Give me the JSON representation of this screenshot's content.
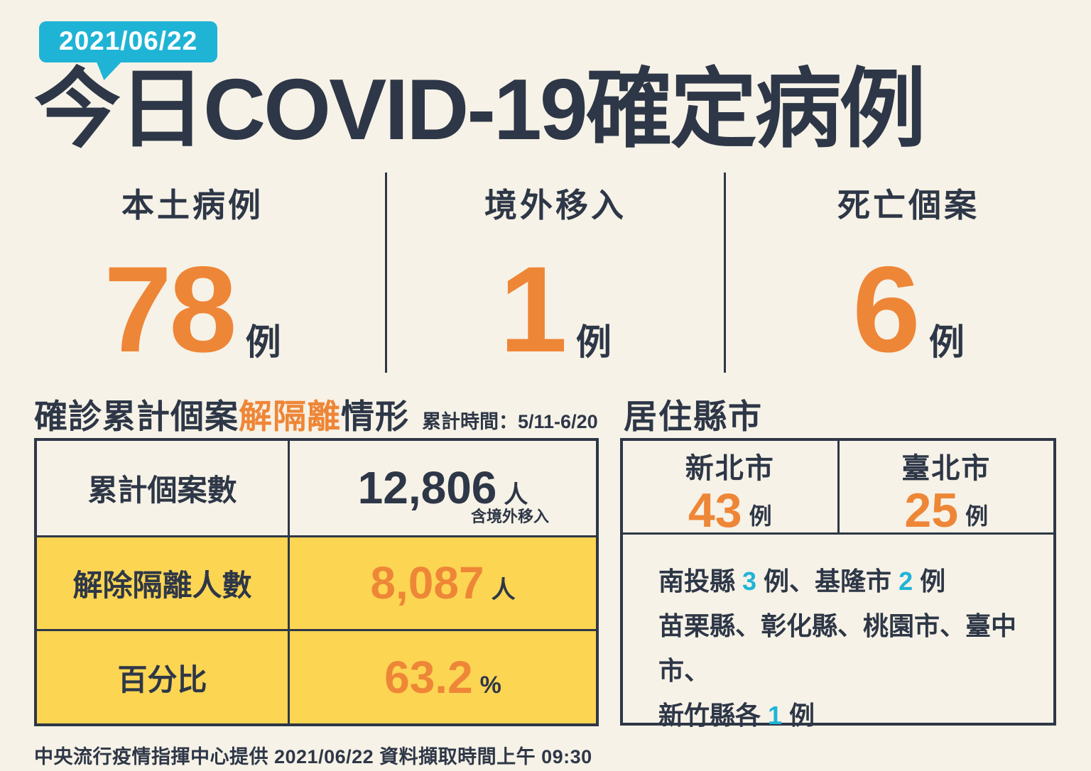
{
  "colors": {
    "background": "#f6f2e7",
    "ink": "#2e3747",
    "accent_orange": "#ee8637",
    "highlight_yellow": "#fcd553",
    "badge_cyan": "#1fb4d6"
  },
  "header": {
    "date_badge": "2021/06/22",
    "title": "今日COVID-19確定病例"
  },
  "stats": [
    {
      "label": "本土病例",
      "value": "78",
      "unit": "例"
    },
    {
      "label": "境外移入",
      "value": "1",
      "unit": "例"
    },
    {
      "label": "死亡個案",
      "value": "6",
      "unit": "例"
    }
  ],
  "isolation_section": {
    "title_prefix": "確診累計個案",
    "title_highlight": "解隔離",
    "title_suffix": "情形",
    "period_note": "累計時間：5/11-6/20",
    "rows": [
      {
        "label": "累計個案數",
        "value": "12,806",
        "unit": "人",
        "note": "含境外移入"
      },
      {
        "label": "解除隔離人數",
        "value": "8,087",
        "unit": "人"
      },
      {
        "label": "百分比",
        "value": "63.2",
        "unit": "%"
      }
    ]
  },
  "residence_section": {
    "title": "居住縣市",
    "cities": [
      {
        "name": "新北市",
        "value": "43",
        "unit": "例"
      },
      {
        "name": "臺北市",
        "value": "25",
        "unit": "例"
      }
    ],
    "others": {
      "line1": [
        "南投縣 ",
        "3",
        " 例、基隆市 ",
        "2",
        " 例"
      ],
      "line2": "苗栗縣、彰化縣、桃園市、臺中市、",
      "line3": [
        "新竹縣各 ",
        "1",
        " 例"
      ]
    }
  },
  "footer": {
    "text": "中央流行疫情指揮中心提供 2021/06/22  資料擷取時間上午 09:30"
  }
}
